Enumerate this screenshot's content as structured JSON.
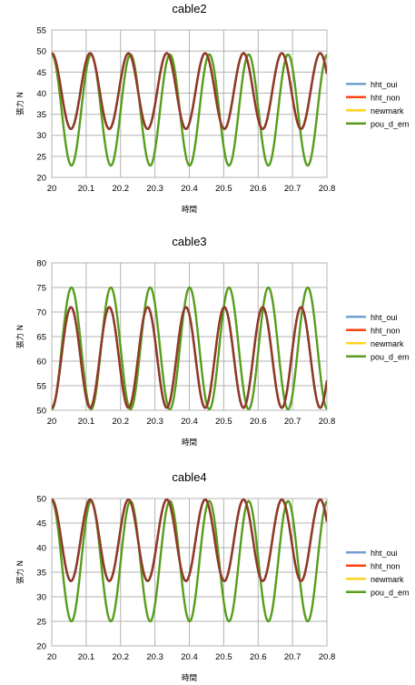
{
  "chart_data": [
    {
      "type": "line",
      "title": "cable2",
      "xlabel": "時間",
      "ylabel": "張力 N",
      "xlim": [
        20,
        20.8
      ],
      "ylim": [
        20,
        55
      ],
      "xticks": [
        "20",
        "20.1",
        "20.2",
        "20.3",
        "20.4",
        "20.5",
        "20.6",
        "20.7",
        "20.8"
      ],
      "yticks": [
        "20",
        "25",
        "30",
        "35",
        "40",
        "45",
        "50",
        "55"
      ],
      "grid": true,
      "legend_position": "right",
      "series": [
        {
          "name": "hht_oui",
          "color": "#729fcf",
          "oscillation": {
            "start": 50,
            "max": 49.5,
            "min": 31.5,
            "period": 0.1115
          }
        },
        {
          "name": "hht_non",
          "color": "#ff420e",
          "oscillation": {
            "start": 50,
            "max": 49.5,
            "min": 31.5,
            "period": 0.1115
          }
        },
        {
          "name": "newmark",
          "color": "#ffd320",
          "oscillation": {
            "start": 50,
            "max": 49.5,
            "min": 31.5,
            "period": 0.1115
          }
        },
        {
          "name": "pou_d_em",
          "color": "#579d1c",
          "oscillation": {
            "start": 50,
            "max": 49.2,
            "min": 22.8,
            "period": 0.1145
          }
        }
      ],
      "overlay_color": "#8b3a2a"
    },
    {
      "type": "line",
      "title": "cable3",
      "xlabel": "時間",
      "ylabel": "張力 N",
      "xlim": [
        20,
        20.8
      ],
      "ylim": [
        50,
        80
      ],
      "xticks": [
        "20",
        "20.1",
        "20.2",
        "20.3",
        "20.4",
        "20.5",
        "20.6",
        "20.7",
        "20.8"
      ],
      "yticks": [
        "50",
        "55",
        "60",
        "65",
        "70",
        "75",
        "80"
      ],
      "grid": true,
      "legend_position": "right",
      "series": [
        {
          "name": "hht_oui",
          "color": "#729fcf",
          "oscillation": {
            "start": 50,
            "max": 71,
            "min": 50.5,
            "period": 0.1115
          }
        },
        {
          "name": "hht_non",
          "color": "#ff420e",
          "oscillation": {
            "start": 50,
            "max": 71,
            "min": 50.5,
            "period": 0.1115
          }
        },
        {
          "name": "newmark",
          "color": "#ffd320",
          "oscillation": {
            "start": 50,
            "max": 71,
            "min": 50.5,
            "period": 0.1115
          }
        },
        {
          "name": "pou_d_em",
          "color": "#579d1c",
          "oscillation": {
            "start": 50,
            "max": 75,
            "min": 50.2,
            "period": 0.1145
          }
        }
      ],
      "overlay_color": "#8b3a2a"
    },
    {
      "type": "line",
      "title": "cable4",
      "xlabel": "時間",
      "ylabel": "張力 N",
      "xlim": [
        20,
        20.8
      ],
      "ylim": [
        20,
        50
      ],
      "xticks": [
        "20",
        "20.1",
        "20.2",
        "20.3",
        "20.4",
        "20.5",
        "20.6",
        "20.7",
        "20.8"
      ],
      "yticks": [
        "20",
        "25",
        "30",
        "35",
        "40",
        "45",
        "50"
      ],
      "grid": true,
      "legend_position": "right",
      "series": [
        {
          "name": "hht_oui",
          "color": "#729fcf",
          "oscillation": {
            "start": 50,
            "max": 49.8,
            "min": 33.2,
            "period": 0.1115
          }
        },
        {
          "name": "hht_non",
          "color": "#ff420e",
          "oscillation": {
            "start": 50,
            "max": 49.8,
            "min": 33.2,
            "period": 0.1115
          }
        },
        {
          "name": "newmark",
          "color": "#ffd320",
          "oscillation": {
            "start": 50,
            "max": 49.8,
            "min": 33.2,
            "period": 0.1115
          }
        },
        {
          "name": "pou_d_em",
          "color": "#579d1c",
          "oscillation": {
            "start": 50,
            "max": 49.5,
            "min": 25,
            "period": 0.1145
          }
        }
      ],
      "overlay_color": "#8b3a2a"
    }
  ]
}
